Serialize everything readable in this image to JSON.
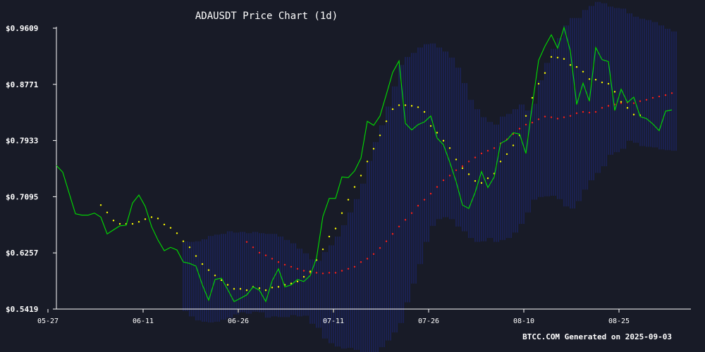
{
  "chart_data": {
    "type": "line",
    "title": "ADAUSDT Price Chart (1d)",
    "footer": "BTCC.COM Generated on 2025-09-03",
    "y_tick_labels": [
      "$0.5419",
      "$0.6257",
      "$0.7095",
      "$0.7933",
      "$0.8771",
      "$0.9609"
    ],
    "y_ticks": [
      0.5419,
      0.6257,
      0.7095,
      0.7933,
      0.8771,
      0.9609
    ],
    "ylim": [
      0.5419,
      0.9609
    ],
    "x_tick_labels": [
      "05-27",
      "06-11",
      "06-26",
      "07-11",
      "07-26",
      "08-10",
      "08-25"
    ],
    "x_tick_index": [
      0,
      15,
      30,
      45,
      60,
      75,
      90
    ],
    "start_label": "05-27",
    "grid": false,
    "series": [
      {
        "name": "",
        "role": "close",
        "color": "#00e000",
        "style": "line",
        "values": [
          0.756,
          0.746,
          0.715,
          0.684,
          0.682,
          0.682,
          0.685,
          0.679,
          0.654,
          0.66,
          0.666,
          0.667,
          0.7,
          0.712,
          0.695,
          0.665,
          0.645,
          0.629,
          0.634,
          0.63,
          0.612,
          0.61,
          0.606,
          0.578,
          0.555,
          0.586,
          0.588,
          0.571,
          0.553,
          0.558,
          0.563,
          0.575,
          0.57,
          0.553,
          0.584,
          0.602,
          0.575,
          0.578,
          0.586,
          0.583,
          0.592,
          0.618,
          0.68,
          0.707,
          0.707,
          0.739,
          0.738,
          0.748,
          0.767,
          0.822,
          0.816,
          0.83,
          0.862,
          0.895,
          0.912,
          0.819,
          0.809,
          0.817,
          0.821,
          0.83,
          0.797,
          0.787,
          0.761,
          0.732,
          0.697,
          0.692,
          0.716,
          0.747,
          0.723,
          0.739,
          0.789,
          0.794,
          0.805,
          0.803,
          0.774,
          0.846,
          0.913,
          0.934,
          0.951,
          0.931,
          0.962,
          0.927,
          0.847,
          0.879,
          0.852,
          0.932,
          0.914,
          0.911,
          0.838,
          0.87,
          0.85,
          0.858,
          0.829,
          0.826,
          0.818,
          0.808,
          0.837,
          0.839
        ]
      },
      {
        "name": "",
        "role": "short-ma",
        "color": "#ffff00",
        "style": "dots",
        "start_index": 7,
        "values": [
          0.697,
          0.686,
          0.674,
          0.669,
          0.669,
          0.669,
          0.672,
          0.676,
          0.679,
          0.677,
          0.668,
          0.663,
          0.655,
          0.643,
          0.634,
          0.621,
          0.609,
          0.6,
          0.592,
          0.585,
          0.578,
          0.572,
          0.572,
          0.57,
          0.575,
          0.573,
          0.57,
          0.574,
          0.575,
          0.578,
          0.58,
          0.583,
          0.59,
          0.598,
          0.615,
          0.631,
          0.65,
          0.662,
          0.685,
          0.705,
          0.724,
          0.741,
          0.762,
          0.781,
          0.801,
          0.822,
          0.84,
          0.846,
          0.846,
          0.845,
          0.843,
          0.836,
          0.815,
          0.805,
          0.793,
          0.782,
          0.765,
          0.752,
          0.743,
          0.733,
          0.73,
          0.737,
          0.744,
          0.762,
          0.773,
          0.786,
          0.801,
          0.83,
          0.857,
          0.878,
          0.894,
          0.918,
          0.917,
          0.915,
          0.906,
          0.903,
          0.896,
          0.885,
          0.884,
          0.88,
          0.878,
          0.866,
          0.851,
          0.842,
          0.832,
          0.831
        ]
      },
      {
        "name": "",
        "role": "long-ma",
        "color": "#ff2020",
        "style": "dots",
        "start_index": 30,
        "values": [
          0.642,
          0.634,
          0.626,
          0.622,
          0.617,
          0.612,
          0.608,
          0.605,
          0.602,
          0.599,
          0.596,
          0.596,
          0.595,
          0.596,
          0.596,
          0.599,
          0.602,
          0.605,
          0.612,
          0.617,
          0.624,
          0.633,
          0.643,
          0.654,
          0.665,
          0.675,
          0.685,
          0.696,
          0.705,
          0.714,
          0.724,
          0.734,
          0.741,
          0.749,
          0.755,
          0.762,
          0.768,
          0.774,
          0.778,
          0.782,
          0.789,
          0.795,
          0.803,
          0.811,
          0.817,
          0.82,
          0.825,
          0.829,
          0.828,
          0.826,
          0.828,
          0.83,
          0.834,
          0.836,
          0.835,
          0.836,
          0.842,
          0.845,
          0.847,
          0.849,
          0.85,
          0.849,
          0.852,
          0.854,
          0.857,
          0.859,
          0.861,
          0.864
        ]
      }
    ],
    "bands": {
      "color": "#1e2a88",
      "start_index": 20,
      "upper": [
        0.643,
        0.642,
        0.643,
        0.646,
        0.651,
        0.653,
        0.654,
        0.658,
        0.656,
        0.657,
        0.655,
        0.657,
        0.655,
        0.654,
        0.654,
        0.65,
        0.645,
        0.64,
        0.632,
        0.625,
        0.616,
        0.614,
        0.627,
        0.637,
        0.65,
        0.667,
        0.686,
        0.706,
        0.729,
        0.763,
        0.791,
        0.816,
        0.844,
        0.874,
        0.906,
        0.918,
        0.924,
        0.932,
        0.937,
        0.938,
        0.932,
        0.926,
        0.917,
        0.902,
        0.879,
        0.854,
        0.84,
        0.828,
        0.821,
        0.817,
        0.829,
        0.833,
        0.84,
        0.847,
        0.838,
        0.848,
        0.883,
        0.909,
        0.93,
        0.946,
        0.965,
        0.976,
        0.976,
        0.988,
        0.994,
        1.0,
        0.998,
        0.993,
        0.991,
        0.99,
        0.983,
        0.978,
        0.975,
        0.973,
        0.97,
        0.965,
        0.96,
        0.956
      ],
      "lower": [
        0.539,
        0.531,
        0.525,
        0.523,
        0.522,
        0.523,
        0.526,
        0.529,
        0.534,
        0.537,
        0.535,
        0.538,
        0.537,
        0.529,
        0.531,
        0.53,
        0.53,
        0.533,
        0.531,
        0.532,
        0.52,
        0.514,
        0.498,
        0.491,
        0.486,
        0.483,
        0.484,
        0.481,
        0.477,
        0.473,
        0.474,
        0.485,
        0.495,
        0.507,
        0.521,
        0.552,
        0.58,
        0.609,
        0.642,
        0.666,
        0.676,
        0.679,
        0.676,
        0.665,
        0.658,
        0.648,
        0.642,
        0.643,
        0.648,
        0.642,
        0.645,
        0.648,
        0.656,
        0.669,
        0.686,
        0.705,
        0.709,
        0.71,
        0.711,
        0.706,
        0.695,
        0.692,
        0.703,
        0.72,
        0.734,
        0.745,
        0.755,
        0.772,
        0.776,
        0.781,
        0.793,
        0.79,
        0.785,
        0.784,
        0.783,
        0.78,
        0.779,
        0.778
      ]
    }
  }
}
